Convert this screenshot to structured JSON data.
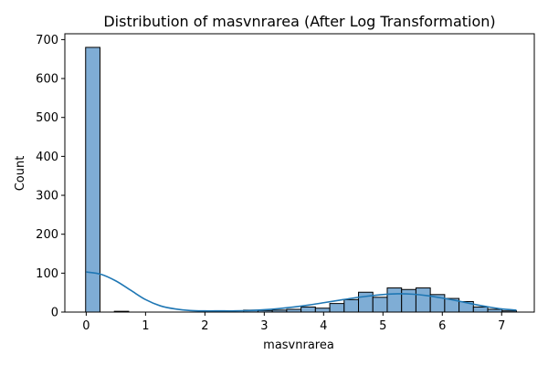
{
  "chart_data": {
    "type": "bar",
    "title": "Distribution of masvnrarea (After Log Transformation)",
    "xlabel": "masvnrarea",
    "ylabel": "Count",
    "xlim": [
      -0.36,
      7.55
    ],
    "ylim": [
      0,
      715
    ],
    "x_ticks": [
      0,
      1,
      2,
      3,
      4,
      5,
      6,
      7
    ],
    "y_ticks": [
      0,
      100,
      200,
      300,
      400,
      500,
      600,
      700
    ],
    "grid": false,
    "bin_width": 0.242,
    "bin_starts": [
      -0.01,
      0.232,
      0.474,
      0.716,
      0.958,
      1.2,
      1.442,
      1.684,
      1.926,
      2.168,
      2.41,
      2.652,
      2.894,
      3.136,
      3.378,
      3.62,
      3.862,
      4.104,
      4.346,
      4.588,
      4.83,
      5.072,
      5.314,
      5.556,
      5.798,
      6.04,
      6.282,
      6.524,
      6.766,
      7.008
    ],
    "counts": [
      680,
      0,
      2,
      0,
      0,
      0,
      0,
      0,
      0,
      0,
      0,
      5,
      4,
      5,
      7,
      13,
      10,
      22,
      32,
      51,
      38,
      62,
      58,
      62,
      45,
      35,
      27,
      13,
      7,
      3
    ],
    "bar_color": "#7fadd5",
    "bar_edge_color": "#000000",
    "kde_color": "#1f77b4",
    "kde": {
      "x": [
        0,
        0.25,
        0.5,
        0.75,
        1.0,
        1.25,
        1.5,
        1.75,
        2.0,
        2.25,
        2.5,
        2.75,
        3.0,
        3.25,
        3.5,
        3.75,
        4.0,
        4.25,
        4.5,
        4.75,
        5.0,
        5.25,
        5.5,
        5.75,
        6.0,
        6.25,
        6.5,
        6.75,
        7.0,
        7.25
      ],
      "y": [
        103,
        97,
        80,
        56,
        32,
        16,
        8,
        4,
        3,
        3,
        3,
        4,
        6,
        9,
        13,
        18,
        24,
        30,
        36,
        41,
        45,
        47,
        46,
        42,
        36,
        29,
        21,
        14,
        8,
        5
      ]
    }
  }
}
